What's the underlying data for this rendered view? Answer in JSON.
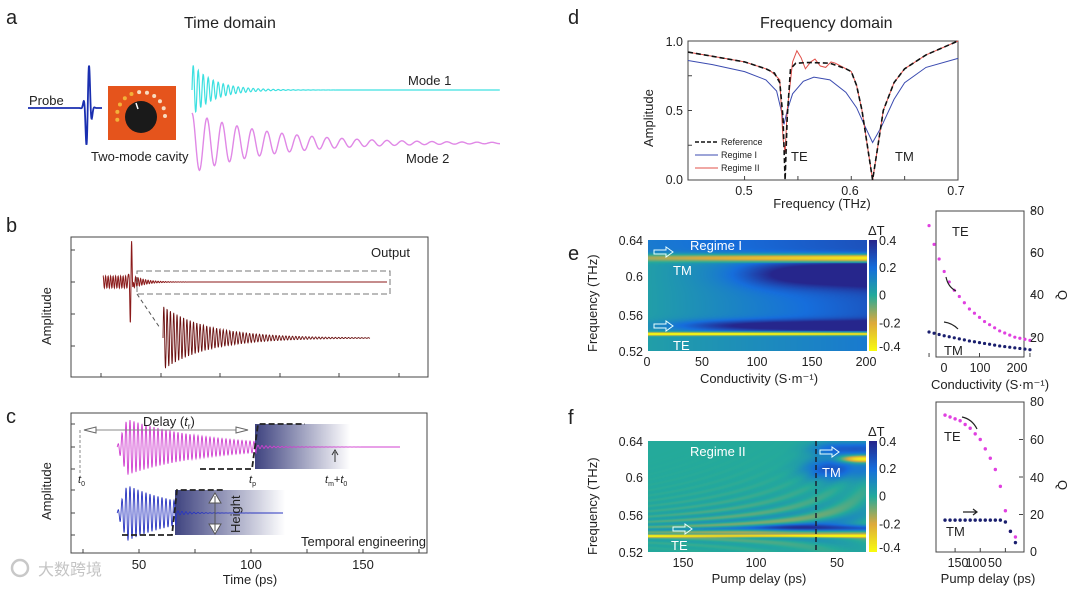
{
  "panel_labels": {
    "a": "a",
    "b": "b",
    "c": "c",
    "d": "d",
    "e": "e",
    "f": "f"
  },
  "panel_a": {
    "title": "Time domain",
    "probe": "Probe",
    "cavity": "Two-mode cavity",
    "mode1": "Mode 1",
    "mode2": "Mode 2",
    "colors": {
      "probe": "#1a2fb0",
      "mode1": "#3de0e0",
      "mode2": "#e088e6",
      "cavity": "#e5541c"
    }
  },
  "panel_b": {
    "ylabel": "Amplitude",
    "output": "Output",
    "color": "#8b1a1a"
  },
  "panel_c": {
    "ylabel": "Amplitude",
    "xlabel": "Time (ps)",
    "xticks": [
      "50",
      "100",
      "150"
    ],
    "delay_prefix": "Delay (",
    "delay_var": "t",
    "delay_sub": "r",
    "delay_suffix": ")",
    "t0_var": "t",
    "t0_sub": "0",
    "tp_var": "t",
    "tp_sub": "p",
    "tm_var": "t",
    "tm_sub": "m",
    "plus": "+",
    "height": "Height",
    "caption": "Temporal engineering"
  },
  "watermark": "大数跨境",
  "chart_data": [
    {
      "id": "d",
      "type": "line",
      "title": "Frequency domain",
      "xlabel": "Frequency (THz)",
      "ylabel": "Amplitude",
      "xlim": [
        0.447,
        0.7
      ],
      "ylim": [
        0,
        1
      ],
      "xticks": [
        "0.5",
        "0.6",
        "0.7"
      ],
      "yticks": [
        "0.0",
        "0.5",
        "1.0"
      ],
      "annotations": [
        "TE",
        "TM"
      ],
      "legend": "bottom-left",
      "series": [
        {
          "name": "Reference",
          "style": "dashed",
          "color": "#111111",
          "x": [
            0.447,
            0.47,
            0.5,
            0.52,
            0.528,
            0.533,
            0.536,
            0.538,
            0.54,
            0.543,
            0.548,
            0.56,
            0.58,
            0.595,
            0.6,
            0.605,
            0.61,
            0.615,
            0.62,
            0.625,
            0.63,
            0.64,
            0.65,
            0.67,
            0.7
          ],
          "y": [
            0.92,
            0.89,
            0.85,
            0.8,
            0.77,
            0.7,
            0.45,
            0.0,
            0.45,
            0.8,
            0.84,
            0.845,
            0.84,
            0.8,
            0.78,
            0.68,
            0.5,
            0.25,
            0.0,
            0.25,
            0.5,
            0.7,
            0.8,
            0.9,
            1.0
          ]
        },
        {
          "name": "Regime I",
          "style": "solid",
          "color": "#3b4bb0",
          "x": [
            0.447,
            0.47,
            0.5,
            0.52,
            0.53,
            0.535,
            0.537,
            0.54,
            0.545,
            0.555,
            0.565,
            0.58,
            0.595,
            0.605,
            0.612,
            0.62,
            0.628,
            0.64,
            0.65,
            0.67,
            0.7
          ],
          "y": [
            0.86,
            0.83,
            0.78,
            0.72,
            0.64,
            0.48,
            0.4,
            0.5,
            0.62,
            0.71,
            0.74,
            0.72,
            0.63,
            0.52,
            0.4,
            0.27,
            0.38,
            0.58,
            0.7,
            0.81,
            0.875
          ]
        },
        {
          "name": "Regime II",
          "style": "solid",
          "color": "#e0504a",
          "x": [
            0.447,
            0.47,
            0.5,
            0.52,
            0.525,
            0.528,
            0.533,
            0.536,
            0.538,
            0.54,
            0.545,
            0.549,
            0.553,
            0.557,
            0.562,
            0.566,
            0.571,
            0.576,
            0.581,
            0.585,
            0.59,
            0.6,
            0.605,
            0.61,
            0.615,
            0.62,
            0.625,
            0.63,
            0.64,
            0.65,
            0.67,
            0.7
          ],
          "y": [
            0.92,
            0.89,
            0.85,
            0.8,
            0.78,
            0.76,
            0.72,
            0.3,
            0.2,
            0.5,
            0.85,
            0.93,
            0.88,
            0.8,
            0.85,
            0.87,
            0.82,
            0.81,
            0.85,
            0.84,
            0.82,
            0.78,
            0.68,
            0.5,
            0.25,
            0.0,
            0.25,
            0.5,
            0.7,
            0.8,
            0.9,
            1.0
          ]
        }
      ]
    },
    {
      "id": "e-map",
      "type": "heatmap",
      "xlabel": "Conductivity (S·m⁻¹)",
      "ylabel": "Frequency (THz)",
      "xlim": [
        0,
        200
      ],
      "ylim": [
        0.52,
        0.64
      ],
      "xticks": [
        "0",
        "50",
        "100",
        "150",
        "200"
      ],
      "yticks": [
        "0.52",
        "0.56",
        "0.6",
        "0.64"
      ],
      "colorbar": {
        "label": "ΔT",
        "range": [
          -0.4,
          0.4
        ],
        "ticks": [
          "0.4",
          "0.2",
          "0",
          "-0.2",
          "-0.4"
        ]
      },
      "mode_freqs_thz": {
        "TE": 0.538,
        "TM": 0.621
      },
      "annotations": [
        "Regime I",
        "TM",
        "TE"
      ]
    },
    {
      "id": "e-q",
      "type": "scatter",
      "xlabel": "Conductivity (S·m⁻¹)",
      "ylabel": "Q",
      "xlim": [
        -10,
        210
      ],
      "ylim": [
        10,
        80
      ],
      "xticks": [
        "0",
        "100",
        "200"
      ],
      "yticks": [
        "20",
        "40",
        "60",
        "80"
      ],
      "series": [
        {
          "name": "TE",
          "color": "#e040e0",
          "x": [
            0,
            10,
            20,
            30,
            40,
            50,
            60,
            70,
            80,
            90,
            100,
            110,
            120,
            130,
            140,
            150,
            160,
            170,
            180,
            190,
            200
          ],
          "y": [
            73,
            64,
            57,
            51,
            46,
            42,
            39,
            36,
            33,
            31,
            29,
            27,
            25.5,
            24,
            22.5,
            21.5,
            20.5,
            19.5,
            19,
            18.5,
            18
          ]
        },
        {
          "name": "TM",
          "color": "#1a1f6e",
          "x": [
            0,
            10,
            20,
            30,
            40,
            50,
            60,
            70,
            80,
            90,
            100,
            110,
            120,
            130,
            140,
            150,
            160,
            170,
            180,
            190,
            200
          ],
          "y": [
            22,
            21.4,
            20.8,
            20.2,
            19.7,
            19.2,
            18.7,
            18.2,
            17.7,
            17.3,
            16.9,
            16.5,
            16.1,
            15.7,
            15.3,
            15,
            14.7,
            14.4,
            14.1,
            13.8,
            13.5
          ]
        }
      ]
    },
    {
      "id": "f-map",
      "type": "heatmap",
      "xlabel": "Pump delay (ps)",
      "ylabel": "Frequency (THz)",
      "xlim": [
        175,
        20
      ],
      "ylim": [
        0.52,
        0.64
      ],
      "xticks": [
        "150",
        "100",
        "50"
      ],
      "yticks": [
        "0.52",
        "0.56",
        "0.6",
        "0.64"
      ],
      "colorbar": {
        "label": "ΔT",
        "range": [
          -0.4,
          0.4
        ],
        "ticks": [
          "0.4",
          "0.2",
          "0",
          "-0.2",
          "-0.4"
        ]
      },
      "marker_delay_ps": 62,
      "annotations": [
        "Regime II",
        "TM",
        "TE"
      ]
    },
    {
      "id": "f-q",
      "type": "scatter",
      "xlabel": "Pump delay (ps)",
      "ylabel": "Q",
      "xlim": [
        180,
        15
      ],
      "ylim": [
        0,
        80
      ],
      "xticks": [
        "150",
        "100",
        "50"
      ],
      "yticks": [
        "0",
        "20",
        "40",
        "60",
        "80"
      ],
      "series": [
        {
          "name": "TE",
          "color": "#e040e0",
          "x": [
            170,
            160,
            150,
            140,
            130,
            120,
            110,
            100,
            90,
            80,
            70,
            60,
            50,
            40,
            30
          ],
          "y": [
            73,
            72,
            71,
            70,
            68,
            66,
            63,
            60,
            55,
            50,
            44,
            35,
            22,
            11,
            8
          ]
        },
        {
          "name": "TM",
          "color": "#1a1f6e",
          "x": [
            170,
            160,
            150,
            140,
            130,
            120,
            110,
            100,
            90,
            80,
            70,
            60,
            50,
            40,
            30
          ],
          "y": [
            17,
            17,
            17,
            17,
            17,
            17,
            17,
            17,
            17,
            17,
            17,
            17,
            16,
            11,
            5
          ]
        }
      ]
    }
  ]
}
